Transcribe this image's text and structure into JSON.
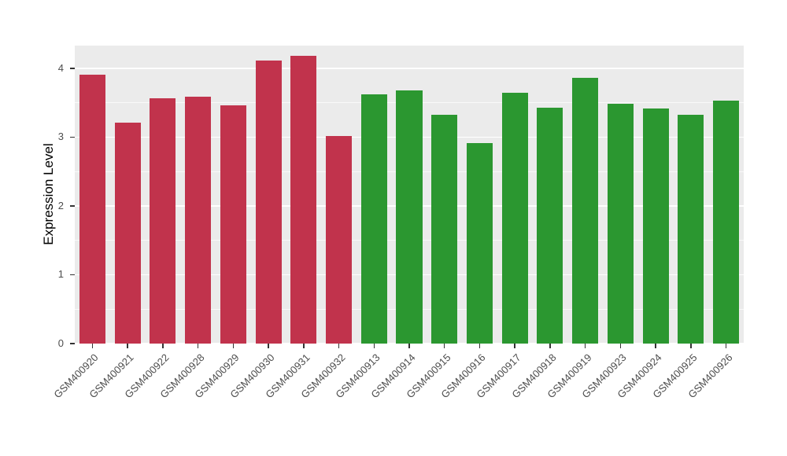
{
  "chart_data": {
    "type": "bar",
    "title": "",
    "xlabel": "",
    "ylabel": "Expression Level",
    "ylim": [
      0,
      4.33
    ],
    "yticks": [
      0,
      1,
      2,
      3,
      4
    ],
    "grid": "on",
    "legend": "none",
    "panel_bg": "#EBEBEB",
    "grid_color": "#FFFFFF",
    "categories": [
      "GSM400920",
      "GSM400921",
      "GSM400922",
      "GSM400928",
      "GSM400929",
      "GSM400930",
      "GSM400931",
      "GSM400932",
      "GSM400913",
      "GSM400914",
      "GSM400915",
      "GSM400916",
      "GSM400917",
      "GSM400918",
      "GSM400919",
      "GSM400923",
      "GSM400924",
      "GSM400925",
      "GSM400926"
    ],
    "values": [
      3.91,
      3.21,
      3.56,
      3.59,
      3.46,
      4.11,
      4.18,
      3.02,
      3.62,
      3.68,
      3.32,
      2.91,
      3.65,
      3.43,
      3.86,
      3.49,
      3.42,
      3.32,
      3.53
    ],
    "groups": [
      "red",
      "red",
      "red",
      "red",
      "red",
      "red",
      "red",
      "red",
      "green",
      "green",
      "green",
      "green",
      "green",
      "green",
      "green",
      "green",
      "green",
      "green",
      "green"
    ],
    "colors": {
      "red": "#C1334C",
      "green": "#2B9730"
    }
  }
}
